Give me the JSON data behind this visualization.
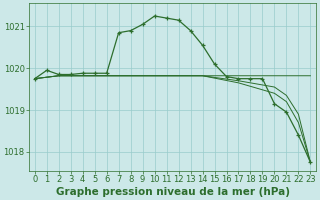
{
  "title": "Graphe pression niveau de la mer (hPa)",
  "bg_color": "#cce8e8",
  "grid_color": "#99cccc",
  "line_color": "#2d6e2d",
  "xlim": [
    -0.5,
    23.5
  ],
  "ylim": [
    1017.55,
    1021.55
  ],
  "yticks": [
    1018,
    1019,
    1020,
    1021
  ],
  "xticks": [
    0,
    1,
    2,
    3,
    4,
    5,
    6,
    7,
    8,
    9,
    10,
    11,
    12,
    13,
    14,
    15,
    16,
    17,
    18,
    19,
    20,
    21,
    22,
    23
  ],
  "series": [
    {
      "x": [
        0,
        1,
        2,
        3,
        4,
        5,
        6,
        7,
        8,
        9,
        10,
        11,
        12,
        13,
        14,
        15,
        16,
        17,
        18,
        19,
        20,
        21,
        22,
        23
      ],
      "y": [
        1019.75,
        1019.95,
        1019.85,
        1019.85,
        1019.88,
        1019.88,
        1019.88,
        1020.85,
        1020.9,
        1021.05,
        1021.25,
        1021.2,
        1021.15,
        1020.9,
        1020.55,
        1020.1,
        1019.8,
        1019.75,
        1019.75,
        1019.75,
        1019.15,
        1018.95,
        1018.4,
        1017.75
      ],
      "markers": true
    },
    {
      "x": [
        0,
        2,
        14,
        23
      ],
      "y": [
        1019.75,
        1019.82,
        1019.82,
        1019.82
      ],
      "markers": false
    },
    {
      "x": [
        0,
        2,
        14,
        17,
        20,
        21,
        22,
        23
      ],
      "y": [
        1019.75,
        1019.82,
        1019.82,
        1019.65,
        1019.4,
        1019.2,
        1018.7,
        1017.75
      ],
      "markers": false
    },
    {
      "x": [
        0,
        2,
        14,
        17,
        20,
        21,
        22,
        23
      ],
      "y": [
        1019.75,
        1019.82,
        1019.82,
        1019.7,
        1019.55,
        1019.35,
        1018.9,
        1017.75
      ],
      "markers": false
    }
  ],
  "title_color": "#2d6e2d",
  "tick_color": "#2d6e2d",
  "title_fontsize": 7.5,
  "tick_fontsize": 6
}
